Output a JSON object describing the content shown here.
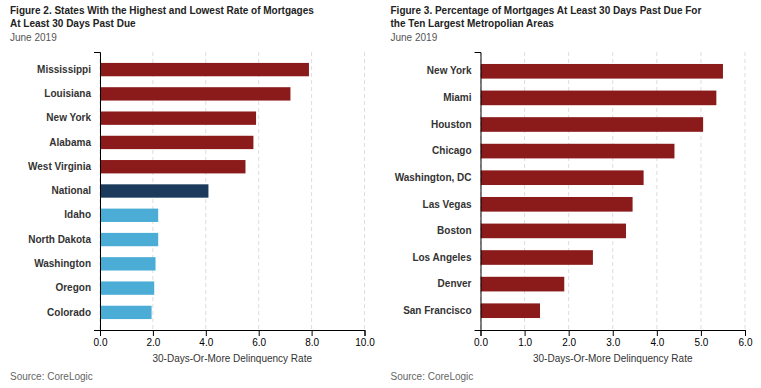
{
  "chart_data": [
    {
      "type": "bar",
      "orientation": "horizontal",
      "title": [
        "Figure 2. States With the Highest and Lowest Rate of Mortgages",
        "At Least 30 Days Past Due"
      ],
      "subtitle": "June 2019",
      "categories": [
        "Mississippi",
        "Louisiana",
        "New York",
        "Alabama",
        "West Virginia",
        "National",
        "Idaho",
        "North Dakota",
        "Washington",
        "Oregon",
        "Colorado"
      ],
      "values": [
        7.9,
        7.2,
        5.9,
        5.8,
        5.5,
        4.1,
        2.2,
        2.2,
        2.1,
        2.05,
        1.95
      ],
      "colors": [
        "#8B1A1A",
        "#8B1A1A",
        "#8B1A1A",
        "#8B1A1A",
        "#8B1A1A",
        "#1B3A5C",
        "#4BACD6",
        "#4BACD6",
        "#4BACD6",
        "#4BACD6",
        "#4BACD6"
      ],
      "xlabel": "30-Days-Or-More Delinquency Rate",
      "source": "Source: CoreLogic",
      "xlim": [
        0,
        10
      ],
      "xticks": [
        {
          "value": 0,
          "label": "0.0"
        },
        {
          "value": 2,
          "label": "2.0"
        },
        {
          "value": 4,
          "label": "4.0"
        },
        {
          "value": 6,
          "label": "6.0"
        },
        {
          "value": 8,
          "label": "8.0"
        },
        {
          "value": 10,
          "label": "10.0"
        }
      ],
      "grid": true
    },
    {
      "type": "bar",
      "orientation": "horizontal",
      "title": [
        "Figure 3. Percentage of Mortgages At Least 30 Days Past Due For",
        "the Ten Largest Metropolian Areas"
      ],
      "subtitle": "June 2019",
      "categories": [
        "New York",
        "Miami",
        "Houston",
        "Chicago",
        "Washington, DC",
        "Las Vegas",
        "Boston",
        "Los Angeles",
        "Denver",
        "San Francisco"
      ],
      "values": [
        5.5,
        5.35,
        5.05,
        4.4,
        3.7,
        3.45,
        3.3,
        2.55,
        1.9,
        1.35
      ],
      "colors": [
        "#8B1A1A",
        "#8B1A1A",
        "#8B1A1A",
        "#8B1A1A",
        "#8B1A1A",
        "#8B1A1A",
        "#8B1A1A",
        "#8B1A1A",
        "#8B1A1A",
        "#8B1A1A"
      ],
      "xlabel": "30-Days-Or-More Delinquency Rate",
      "source": "Source: CoreLogic",
      "xlim": [
        0,
        6
      ],
      "xticks": [
        {
          "value": 0,
          "label": "0.0"
        },
        {
          "value": 1,
          "label": "1.0"
        },
        {
          "value": 2,
          "label": "2.0"
        },
        {
          "value": 3,
          "label": "3.0"
        },
        {
          "value": 4,
          "label": "4.0"
        },
        {
          "value": 5,
          "label": "5.0"
        },
        {
          "value": 6,
          "label": "6.0"
        }
      ],
      "grid": true
    }
  ]
}
